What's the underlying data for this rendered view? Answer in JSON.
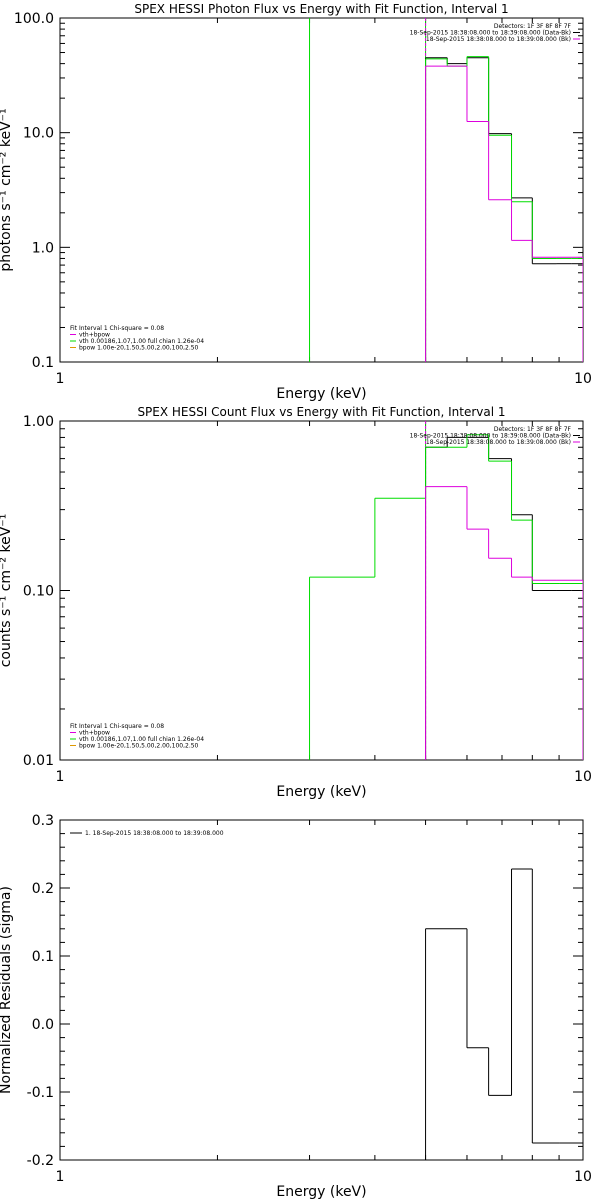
{
  "colors": {
    "background": "#ffffff",
    "axes": "#000000",
    "data": "#000000",
    "total": "#00dd00",
    "bkg": "#dd00dd",
    "vth": "#00dd00",
    "bpow": "#dd9900"
  },
  "chart_data": [
    {
      "type": "line",
      "id": "photon",
      "title": "SPEX HESSI Photon Flux vs Energy with Fit Function, Interval 1",
      "xlabel": "Energy (keV)",
      "ylabel": "photons s⁻¹ cm⁻² keV⁻¹",
      "xscale": "log",
      "yscale": "log",
      "xlim": [
        1,
        10
      ],
      "ylim": [
        0.1,
        100
      ],
      "xticks": [
        {
          "v": 1,
          "label": "1"
        },
        {
          "v": 10,
          "label": "10"
        }
      ],
      "yticks": [
        {
          "v": 0.1,
          "label": "0.1"
        },
        {
          "v": 1,
          "label": "1.0"
        },
        {
          "v": 10,
          "label": "10.0"
        },
        {
          "v": 100,
          "label": "100.0"
        }
      ],
      "info_lines": [
        "Detectors: 1F 3F 8F 8F 7F",
        "18-Sep-2015 18:38:08.000 to 18:39:08.000 (Data-Bk)",
        "18-Sep-2015 18:38:08.000 to 18:39:08.000 (Bk)"
      ],
      "info_colors": [
        "data",
        "data",
        "bkg"
      ],
      "legend_lines": [
        "Fit Interval 1   Chi-square = 0.08",
        "vth+bpow",
        "vth 0.00186,1.07,1.00  full chian 1.26e-04",
        "bpow 1.00e-20,1.50,5.00,2.00,100,2.50"
      ],
      "legend_colors": [
        "data",
        "bkg",
        "vth",
        "bpow"
      ],
      "series": [
        {
          "name": "Data-Bk",
          "color": "data",
          "edges": [
            5.0,
            5.5,
            6.0,
            6.6,
            7.3,
            8.0,
            8.9,
            9.5,
            10.0
          ],
          "values": [
            45,
            40,
            45,
            9.8,
            2.7,
            0.72,
            0.72,
            0.72
          ]
        },
        {
          "name": "vth+bpow",
          "color": "total",
          "edges": [
            5.0,
            5.5,
            6.0,
            6.6,
            7.3,
            8.0,
            8.9,
            9.5,
            10.0
          ],
          "values": [
            44,
            38,
            46,
            9.5,
            2.5,
            0.8,
            0.8,
            0.8
          ]
        },
        {
          "name": "Bk",
          "color": "bkg",
          "edges": [
            5.0,
            6.0,
            6.6,
            7.3,
            8.0,
            8.9,
            10.0
          ],
          "values": [
            38,
            12.5,
            2.6,
            1.15,
            0.82,
            0.82
          ]
        }
      ],
      "vlines": [
        {
          "x": 3.0,
          "color": "total"
        },
        {
          "x": 5.0,
          "color": "total"
        },
        {
          "x": 5.0,
          "color": "bkg"
        }
      ]
    },
    {
      "type": "line",
      "id": "count",
      "title": "SPEX HESSI Count Flux vs Energy with Fit Function, Interval 1",
      "xlabel": "Energy (keV)",
      "ylabel": "counts s⁻¹ cm⁻² keV⁻¹",
      "xscale": "log",
      "yscale": "log",
      "xlim": [
        1,
        10
      ],
      "ylim": [
        0.01,
        1.0
      ],
      "xticks": [
        {
          "v": 1,
          "label": "1"
        },
        {
          "v": 10,
          "label": "10"
        }
      ],
      "yticks": [
        {
          "v": 0.01,
          "label": "0.01"
        },
        {
          "v": 0.1,
          "label": "0.10"
        },
        {
          "v": 1,
          "label": "1.00"
        }
      ],
      "info_lines": [
        "Detectors: 1F 3F 8F 8F 7F",
        "18-Sep-2015 18:38:08.000 to 18:39:08.000 (Data-Bk)",
        "18-Sep-2015 18:38:08.000 to 18:39:08.000 (Bk)"
      ],
      "info_colors": [
        "data",
        "data",
        "bkg"
      ],
      "legend_lines": [
        "Fit Interval 1   Chi-square = 0.08",
        "vth+bpow",
        "vth 0.00186,1.07,1.00  full chian 1.26e-04",
        "bpow 1.00e-20,1.50,5.00,2.00,100,2.50"
      ],
      "legend_colors": [
        "data",
        "bkg",
        "vth",
        "bpow"
      ],
      "series": [
        {
          "name": "Data-Bk",
          "color": "data",
          "edges": [
            5.0,
            5.5,
            6.0,
            6.6,
            7.3,
            8.0,
            8.9,
            9.5,
            10.0
          ],
          "values": [
            0.7,
            0.8,
            0.8,
            0.6,
            0.28,
            0.1,
            0.1,
            0.1
          ]
        },
        {
          "name": "vth+bpow",
          "color": "total",
          "edges": [
            3.0,
            4.0,
            5.0,
            6.0,
            6.6,
            7.3,
            8.0,
            9.0,
            10.0
          ],
          "values": [
            0.12,
            0.35,
            0.7,
            0.83,
            0.58,
            0.26,
            0.11,
            0.11
          ]
        },
        {
          "name": "Bk",
          "color": "bkg",
          "edges": [
            5.0,
            6.0,
            6.6,
            7.3,
            8.0,
            8.9,
            10.0
          ],
          "values": [
            0.41,
            0.23,
            0.155,
            0.12,
            0.115,
            0.115
          ]
        }
      ],
      "vlines": [
        {
          "x": 5.0,
          "color": "total"
        },
        {
          "x": 5.0,
          "color": "bkg"
        }
      ]
    },
    {
      "type": "line",
      "id": "residuals",
      "title": "",
      "xlabel": "Energy (keV)",
      "ylabel": "Normalized Residuals (sigma)",
      "xscale": "log",
      "yscale": "linear",
      "xlim": [
        1,
        10
      ],
      "ylim": [
        -0.2,
        0.3
      ],
      "xticks": [
        {
          "v": 1,
          "label": "1"
        },
        {
          "v": 10,
          "label": "10"
        }
      ],
      "yticks": [
        {
          "v": -0.2,
          "label": "-0.2"
        },
        {
          "v": -0.1,
          "label": "-0.1"
        },
        {
          "v": 0.0,
          "label": "0.0"
        },
        {
          "v": 0.1,
          "label": "0.1"
        },
        {
          "v": 0.2,
          "label": "0.2"
        },
        {
          "v": 0.3,
          "label": "0.3"
        }
      ],
      "info_lines": [],
      "info_colors": [],
      "legend_lines": [
        "1. 18-Sep-2015 18:38:08.000 to 18:39:08.000"
      ],
      "legend_colors": [
        "data"
      ],
      "series": [
        {
          "name": "1. 18-Sep-2015 18:38:08.000 to 18:39:08.000",
          "color": "data",
          "edges": [
            5.0,
            6.0,
            6.6,
            7.3,
            8.0,
            9.0,
            10.0
          ],
          "values": [
            0.14,
            -0.035,
            -0.105,
            0.228,
            -0.175,
            -0.175
          ]
        }
      ],
      "vlines": []
    }
  ]
}
